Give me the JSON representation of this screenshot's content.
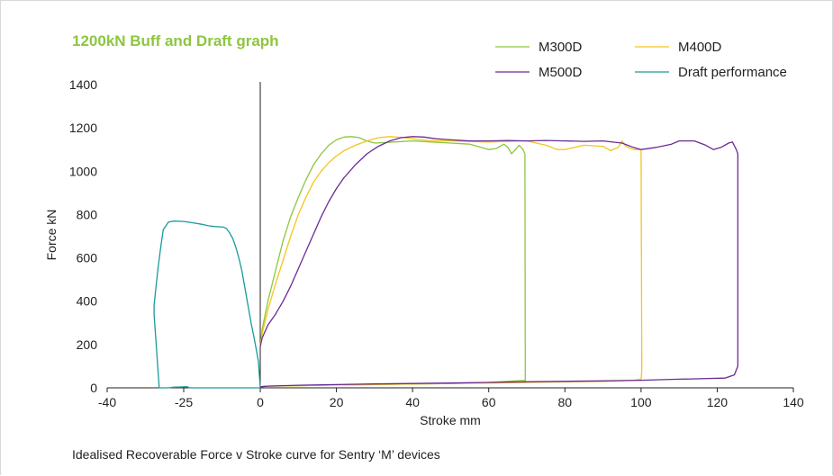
{
  "title": "1200kN Buff and Draft graph",
  "caption": "Idealised Recoverable Force v Stroke curve for Sentry ‘M’ devices",
  "chart_data": {
    "type": "line",
    "title": "1200kN Buff and Draft graph",
    "xlabel": "Stroke mm",
    "ylabel": "Force kN",
    "xlim": [
      -40,
      140
    ],
    "ylim": [
      0,
      1400
    ],
    "x_ticks": [
      "-40",
      "-25",
      "0",
      "20",
      "40",
      "60",
      "80",
      "100",
      "120",
      "140"
    ],
    "y_ticks": [
      "0",
      "200",
      "400",
      "600",
      "800",
      "1000",
      "1200",
      "1400"
    ],
    "grid": false,
    "legend_position": "top-right",
    "series": [
      {
        "name": "M300D",
        "color": "#8dc63f",
        "points": [
          [
            0,
            190
          ],
          [
            0.5,
            270
          ],
          [
            2,
            400
          ],
          [
            4,
            540
          ],
          [
            6,
            680
          ],
          [
            8,
            790
          ],
          [
            10,
            880
          ],
          [
            12,
            960
          ],
          [
            14,
            1030
          ],
          [
            16,
            1080
          ],
          [
            18,
            1120
          ],
          [
            20,
            1145
          ],
          [
            22,
            1158
          ],
          [
            24,
            1160
          ],
          [
            26,
            1155
          ],
          [
            28,
            1140
          ],
          [
            30,
            1130
          ],
          [
            35,
            1135
          ],
          [
            40,
            1140
          ],
          [
            45,
            1135
          ],
          [
            50,
            1130
          ],
          [
            55,
            1125
          ],
          [
            58,
            1110
          ],
          [
            60,
            1100
          ],
          [
            62,
            1105
          ],
          [
            64,
            1125
          ],
          [
            65,
            1110
          ],
          [
            66,
            1080
          ],
          [
            67,
            1100
          ],
          [
            68,
            1120
          ],
          [
            69,
            1100
          ],
          [
            69.5,
            1080
          ],
          [
            69.6,
            30
          ],
          [
            69,
            35
          ],
          [
            65,
            30
          ],
          [
            60,
            25
          ],
          [
            55,
            22
          ],
          [
            50,
            20
          ],
          [
            40,
            18
          ],
          [
            30,
            15
          ],
          [
            20,
            13
          ],
          [
            10,
            10
          ],
          [
            2,
            8
          ],
          [
            0,
            5
          ]
        ]
      },
      {
        "name": "M400D",
        "color": "#f5c518",
        "points": [
          [
            0,
            190
          ],
          [
            0.5,
            250
          ],
          [
            2,
            360
          ],
          [
            4,
            480
          ],
          [
            6,
            590
          ],
          [
            8,
            700
          ],
          [
            10,
            800
          ],
          [
            12,
            880
          ],
          [
            14,
            950
          ],
          [
            16,
            1000
          ],
          [
            18,
            1040
          ],
          [
            20,
            1070
          ],
          [
            22,
            1095
          ],
          [
            25,
            1120
          ],
          [
            28,
            1140
          ],
          [
            31,
            1155
          ],
          [
            34,
            1160
          ],
          [
            38,
            1155
          ],
          [
            42,
            1145
          ],
          [
            46,
            1140
          ],
          [
            50,
            1140
          ],
          [
            60,
            1135
          ],
          [
            70,
            1140
          ],
          [
            75,
            1120
          ],
          [
            78,
            1100
          ],
          [
            80,
            1100
          ],
          [
            85,
            1120
          ],
          [
            90,
            1115
          ],
          [
            92,
            1095
          ],
          [
            94,
            1110
          ],
          [
            95,
            1140
          ],
          [
            96,
            1115
          ],
          [
            98,
            1100
          ],
          [
            100,
            1100
          ],
          [
            100.2,
            80
          ],
          [
            100,
            40
          ],
          [
            98,
            35
          ],
          [
            90,
            30
          ],
          [
            80,
            28
          ],
          [
            70,
            25
          ],
          [
            60,
            22
          ],
          [
            50,
            20
          ],
          [
            40,
            18
          ],
          [
            30,
            15
          ],
          [
            20,
            13
          ],
          [
            10,
            10
          ],
          [
            2,
            8
          ],
          [
            0,
            5
          ]
        ]
      },
      {
        "name": "M500D",
        "color": "#6b2c91",
        "points": [
          [
            0,
            190
          ],
          [
            0.5,
            230
          ],
          [
            2,
            290
          ],
          [
            4,
            340
          ],
          [
            6,
            400
          ],
          [
            8,
            470
          ],
          [
            10,
            550
          ],
          [
            12,
            630
          ],
          [
            14,
            710
          ],
          [
            16,
            790
          ],
          [
            18,
            860
          ],
          [
            20,
            920
          ],
          [
            22,
            970
          ],
          [
            25,
            1030
          ],
          [
            28,
            1080
          ],
          [
            31,
            1115
          ],
          [
            34,
            1140
          ],
          [
            37,
            1155
          ],
          [
            40,
            1160
          ],
          [
            43,
            1158
          ],
          [
            46,
            1150
          ],
          [
            50,
            1145
          ],
          [
            55,
            1140
          ],
          [
            60,
            1140
          ],
          [
            65,
            1142
          ],
          [
            70,
            1140
          ],
          [
            75,
            1142
          ],
          [
            80,
            1140
          ],
          [
            85,
            1138
          ],
          [
            90,
            1140
          ],
          [
            95,
            1130
          ],
          [
            98,
            1110
          ],
          [
            100,
            1100
          ],
          [
            104,
            1110
          ],
          [
            108,
            1125
          ],
          [
            110,
            1140
          ],
          [
            114,
            1140
          ],
          [
            117,
            1120
          ],
          [
            119,
            1100
          ],
          [
            121,
            1110
          ],
          [
            123,
            1130
          ],
          [
            124,
            1135
          ],
          [
            125,
            1100
          ],
          [
            125.4,
            1080
          ],
          [
            125.4,
            100
          ],
          [
            124.5,
            60
          ],
          [
            122,
            45
          ],
          [
            110,
            40
          ],
          [
            100,
            35
          ],
          [
            90,
            32
          ],
          [
            80,
            30
          ],
          [
            70,
            28
          ],
          [
            60,
            25
          ],
          [
            50,
            22
          ],
          [
            40,
            20
          ],
          [
            30,
            18
          ],
          [
            20,
            15
          ],
          [
            10,
            12
          ],
          [
            2,
            8
          ],
          [
            0,
            5
          ]
        ]
      },
      {
        "name": "Draft performance",
        "color": "#1a9a9a",
        "points": [
          [
            0,
            0
          ],
          [
            -0.3,
            60
          ],
          [
            -0.6,
            120
          ],
          [
            -1.2,
            170
          ],
          [
            -2,
            230
          ],
          [
            -3,
            300
          ],
          [
            -4,
            380
          ],
          [
            -5,
            460
          ],
          [
            -6,
            540
          ],
          [
            -7,
            600
          ],
          [
            -8,
            650
          ],
          [
            -9,
            690
          ],
          [
            -10,
            715
          ],
          [
            -11,
            735
          ],
          [
            -12,
            742
          ],
          [
            -15,
            745
          ],
          [
            -17,
            748
          ],
          [
            -19,
            755
          ],
          [
            -22,
            762
          ],
          [
            -25,
            768
          ],
          [
            -27,
            770
          ],
          [
            -28,
            765
          ],
          [
            -29,
            730
          ],
          [
            -29.5,
            650
          ],
          [
            -30,
            560
          ],
          [
            -30.5,
            450
          ],
          [
            -30.8,
            380
          ],
          [
            -30.8,
            340
          ],
          [
            -29.8,
            0
          ],
          [
            -28,
            0
          ],
          [
            -27,
            3
          ],
          [
            -24,
            5
          ],
          [
            -23,
            0
          ],
          [
            -15,
            0
          ],
          [
            -2,
            0
          ],
          [
            0,
            0
          ]
        ]
      }
    ]
  }
}
